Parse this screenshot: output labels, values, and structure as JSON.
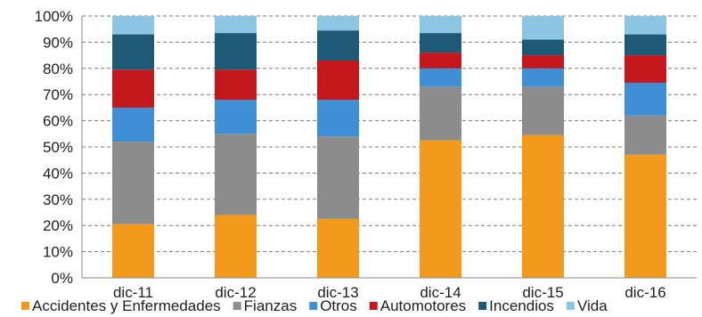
{
  "chart_data": {
    "type": "bar",
    "stacked": true,
    "percent": true,
    "categories": [
      "dic-11",
      "dic-12",
      "dic-13",
      "dic-14",
      "dic-15",
      "dic-16"
    ],
    "ylim": [
      0,
      100
    ],
    "yticks": [
      "0%",
      "10%",
      "20%",
      "30%",
      "40%",
      "50%",
      "60%",
      "70%",
      "80%",
      "90%",
      "100%"
    ],
    "grid": true,
    "legend_position": "bottom",
    "series": [
      {
        "name": "Accidentes y Enfermedades",
        "color": "#f39a1c",
        "values": [
          20.5,
          24,
          22.5,
          52.5,
          54.5,
          47
        ]
      },
      {
        "name": "Fianzas",
        "color": "#8c8c8c",
        "values": [
          31.5,
          31,
          31.5,
          20.5,
          18.5,
          15
        ]
      },
      {
        "name": "Otros",
        "color": "#3f8fd6",
        "values": [
          13,
          13,
          14,
          7,
          7,
          12.5
        ]
      },
      {
        "name": "Automotores",
        "color": "#c4171c",
        "values": [
          14.5,
          11.5,
          15,
          6,
          5,
          10.5
        ]
      },
      {
        "name": "Incendios",
        "color": "#1c5a77",
        "values": [
          13.5,
          14,
          11.5,
          7.5,
          6,
          8
        ]
      },
      {
        "name": "Vida",
        "color": "#8dc6e4",
        "values": [
          7,
          6.5,
          5.5,
          6.5,
          9,
          7
        ]
      }
    ]
  }
}
